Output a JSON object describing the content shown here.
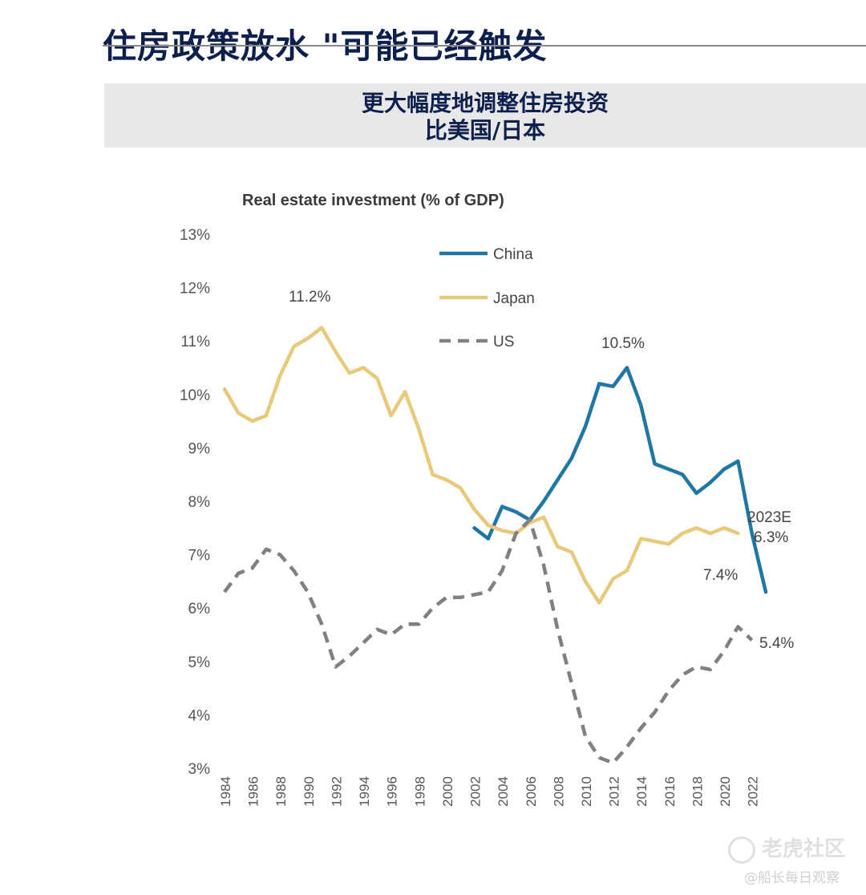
{
  "page": {
    "headline": "住房政策放水 \"可能已经触发",
    "subtitle_line1": "更大幅度地调整住房投资",
    "subtitle_line2": "比美国/日本",
    "watermark_logo": "老虎社区",
    "watermark_author": "@船长每日观察"
  },
  "chart_data": {
    "type": "line",
    "title": "Real estate investment (% of GDP)",
    "xlabel": "",
    "ylabel": "",
    "xlim": [
      1984,
      2023
    ],
    "ylim": [
      3,
      13
    ],
    "grid": false,
    "legend_position": "top-center",
    "x_ticks": [
      "1984",
      "1986",
      "1988",
      "1990",
      "1992",
      "1994",
      "1996",
      "1998",
      "2000",
      "2002",
      "2004",
      "2006",
      "2008",
      "2010",
      "2012",
      "2014",
      "2016",
      "2018",
      "2020",
      "2022"
    ],
    "y_ticks": [
      "3%",
      "4%",
      "5%",
      "6%",
      "7%",
      "8%",
      "9%",
      "10%",
      "11%",
      "12%",
      "13%"
    ],
    "series": [
      {
        "name": "China",
        "color": "#1f77a4",
        "dash": "solid",
        "x": [
          2002,
          2003,
          2004,
          2005,
          2006,
          2007,
          2008,
          2009,
          2010,
          2011,
          2012,
          2013,
          2014,
          2015,
          2016,
          2017,
          2018,
          2019,
          2020,
          2021,
          2022,
          2023
        ],
        "y": [
          7.5,
          7.3,
          7.9,
          7.8,
          7.65,
          8.0,
          8.4,
          8.8,
          9.4,
          10.2,
          10.15,
          10.5,
          9.8,
          8.7,
          8.6,
          8.5,
          8.15,
          8.35,
          8.6,
          8.75,
          7.4,
          6.3
        ]
      },
      {
        "name": "Japan",
        "color": "#e8c97a",
        "dash": "solid",
        "x": [
          1984,
          1985,
          1986,
          1987,
          1988,
          1989,
          1990,
          1991,
          1992,
          1993,
          1994,
          1995,
          1996,
          1997,
          1998,
          1999,
          2000,
          2001,
          2002,
          2003,
          2004,
          2005,
          2006,
          2007,
          2008,
          2009,
          2010,
          2011,
          2012,
          2013,
          2014,
          2015,
          2016,
          2017,
          2018,
          2019,
          2020,
          2021
        ],
        "y": [
          10.1,
          9.65,
          9.5,
          9.6,
          10.35,
          10.9,
          11.05,
          11.25,
          10.8,
          10.4,
          10.5,
          10.3,
          9.6,
          10.05,
          9.35,
          8.5,
          8.4,
          8.25,
          7.85,
          7.55,
          7.45,
          7.4,
          7.6,
          7.7,
          7.15,
          7.05,
          6.5,
          6.1,
          6.55,
          6.7,
          7.3,
          7.25,
          7.2,
          7.4,
          7.5,
          7.4,
          7.5,
          7.4
        ]
      },
      {
        "name": "US",
        "color": "#808080",
        "dash": "dashed",
        "x": [
          1984,
          1985,
          1986,
          1987,
          1988,
          1989,
          1990,
          1991,
          1992,
          1993,
          1994,
          1995,
          1996,
          1997,
          1998,
          1999,
          2000,
          2001,
          2002,
          2003,
          2004,
          2005,
          2006,
          2007,
          2008,
          2009,
          2010,
          2011,
          2012,
          2013,
          2014,
          2015,
          2016,
          2017,
          2018,
          2019,
          2020,
          2021,
          2022
        ],
        "y": [
          6.3,
          6.65,
          6.75,
          7.1,
          7.0,
          6.7,
          6.3,
          5.7,
          4.9,
          5.1,
          5.35,
          5.6,
          5.5,
          5.7,
          5.7,
          6.0,
          6.2,
          6.2,
          6.25,
          6.3,
          6.7,
          7.4,
          7.65,
          6.8,
          5.6,
          4.6,
          3.6,
          3.2,
          3.1,
          3.4,
          3.75,
          4.05,
          4.45,
          4.75,
          4.9,
          4.85,
          5.2,
          5.65,
          5.4
        ]
      }
    ],
    "annotations": [
      {
        "text": "11.2%",
        "series": "Japan"
      },
      {
        "text": "10.5%",
        "series": "China"
      },
      {
        "text": "2023E",
        "series": "China"
      },
      {
        "text": "6.3%",
        "series": "China"
      },
      {
        "text": "7.4%",
        "series": "Japan"
      },
      {
        "text": "5.4%",
        "series": "US"
      }
    ]
  }
}
